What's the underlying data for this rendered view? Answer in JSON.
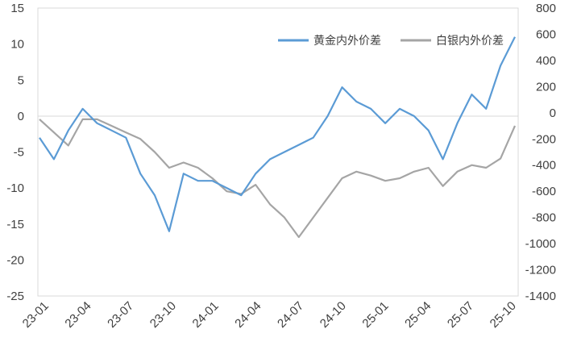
{
  "chart_data": {
    "type": "line",
    "x_tick_labels": [
      "23-01",
      "23-04",
      "23-07",
      "23-10",
      "24-01",
      "24-04",
      "24-07",
      "24-10",
      "25-01",
      "25-04",
      "25-07",
      "25-10"
    ],
    "y_left": {
      "lim": [
        -25,
        15
      ],
      "ticks": [
        "15",
        "10",
        "5",
        "0",
        "-5",
        "-10",
        "-15",
        "-20",
        "-25"
      ]
    },
    "y_right": {
      "lim": [
        -1400,
        800
      ],
      "ticks": [
        "800",
        "600",
        "400",
        "200",
        "0",
        "-200",
        "-400",
        "-600",
        "-800",
        "-1000",
        "-1200",
        "-1400"
      ]
    },
    "grid": false,
    "legend_position": "top-right",
    "series": [
      {
        "name": "黄金内外价差",
        "axis": "left",
        "color": "#5b9bd5",
        "x": [
          "23-01",
          "23-02",
          "23-03",
          "23-04",
          "23-05",
          "23-06",
          "23-07",
          "23-08",
          "23-09",
          "23-10",
          "23-11",
          "23-12",
          "24-01",
          "24-02",
          "24-03",
          "24-04",
          "24-05",
          "24-06",
          "24-07",
          "24-08",
          "24-09",
          "24-10",
          "24-11",
          "24-12",
          "25-01",
          "25-02",
          "25-03",
          "25-04",
          "25-05",
          "25-06",
          "25-07",
          "25-08",
          "25-09",
          "25-10"
        ],
        "values": [
          -3,
          -6,
          -2,
          1,
          -1,
          -2,
          -3,
          -8,
          -11,
          -16,
          -8,
          -9,
          -9,
          -10,
          -11,
          -8,
          -6,
          -5,
          -4,
          -3,
          0,
          4,
          2,
          1,
          -1,
          1,
          0,
          -2,
          -6,
          -1,
          3,
          1,
          7,
          11
        ]
      },
      {
        "name": "白银内外价差",
        "axis": "right",
        "color": "#a5a5a5",
        "x": [
          "23-01",
          "23-02",
          "23-03",
          "23-04",
          "23-05",
          "23-06",
          "23-07",
          "23-08",
          "23-09",
          "23-10",
          "23-11",
          "23-12",
          "24-01",
          "24-02",
          "24-03",
          "24-04",
          "24-05",
          "24-06",
          "24-07",
          "24-08",
          "24-09",
          "24-10",
          "24-11",
          "24-12",
          "25-01",
          "25-02",
          "25-03",
          "25-04",
          "25-05",
          "25-06",
          "25-07",
          "25-08",
          "25-09",
          "25-10"
        ],
        "values": [
          -50,
          -150,
          -250,
          -50,
          -50,
          -100,
          -150,
          -200,
          -300,
          -420,
          -380,
          -420,
          -500,
          -600,
          -620,
          -550,
          -700,
          -800,
          -950,
          -800,
          -650,
          -500,
          -450,
          -480,
          -520,
          -500,
          -450,
          -420,
          -560,
          -450,
          -400,
          -420,
          -350,
          -100
        ]
      }
    ]
  }
}
